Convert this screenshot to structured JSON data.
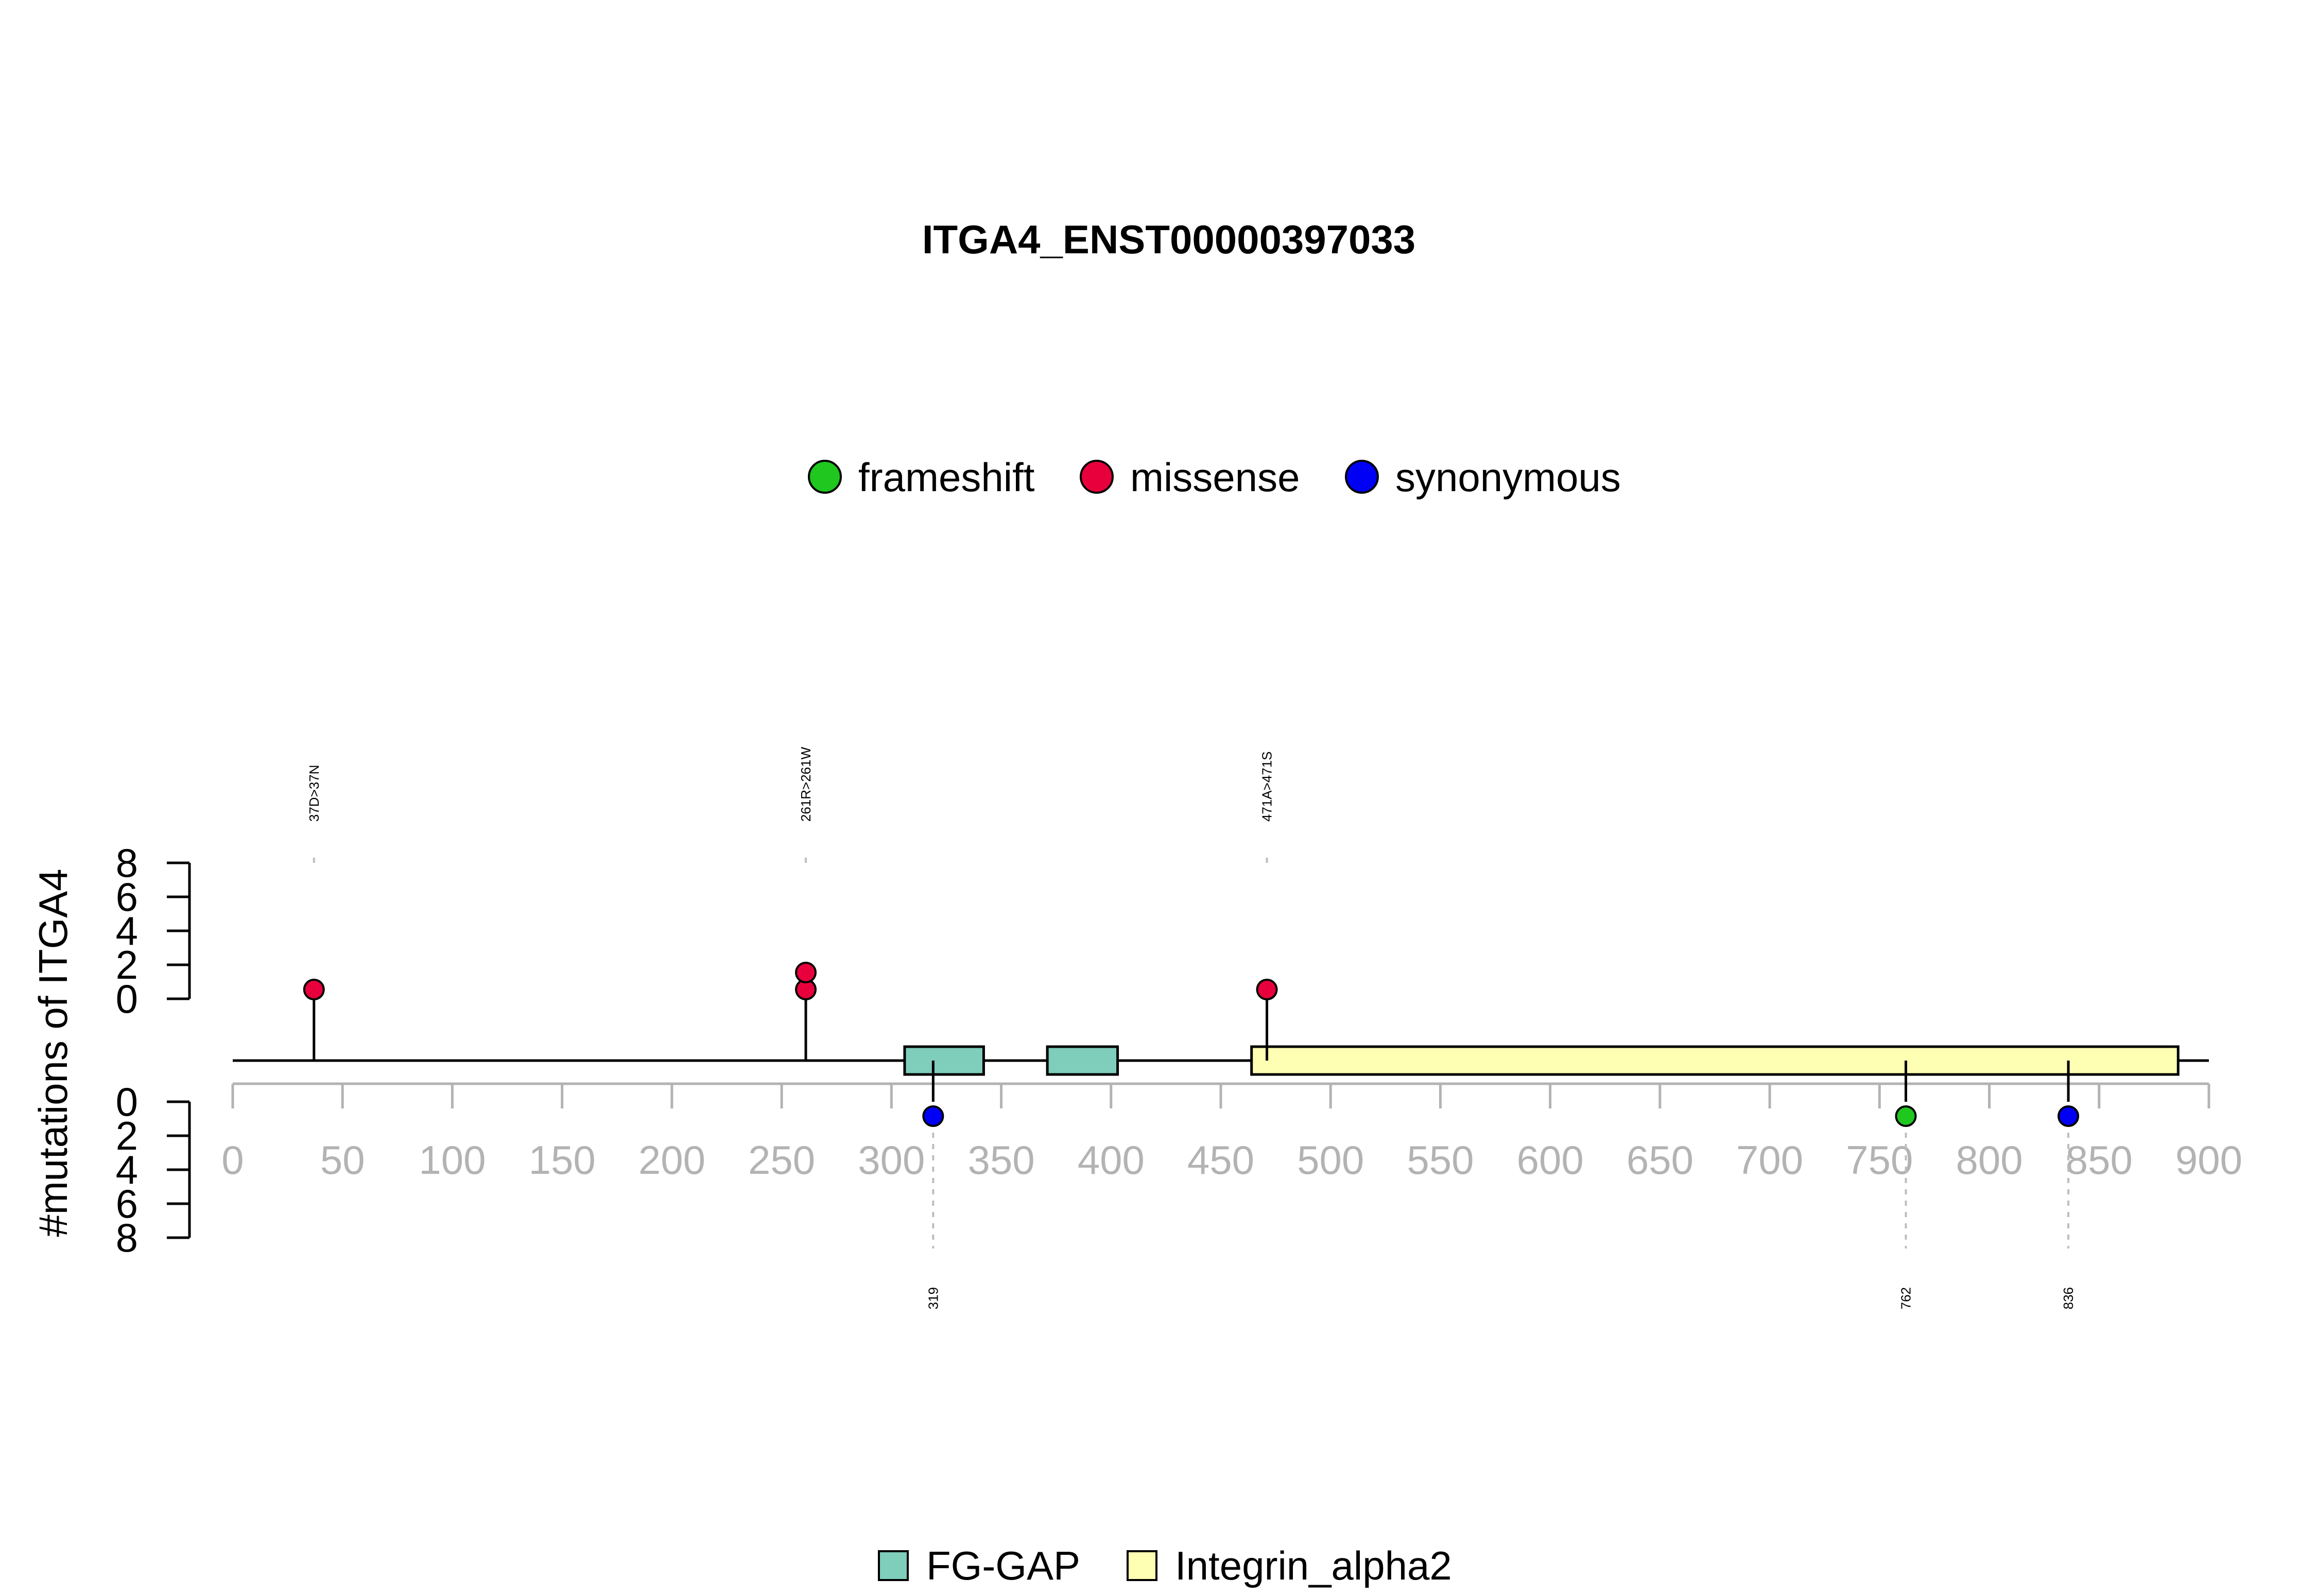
{
  "chart_data": {
    "type": "lollipop",
    "title": "ITGA4_ENST00000397033",
    "ylabel": "#mutations of ITGA4",
    "xlim": [
      0,
      900
    ],
    "x_ticks": [
      0,
      50,
      100,
      150,
      200,
      250,
      300,
      350,
      400,
      450,
      500,
      550,
      600,
      650,
      700,
      750,
      800,
      850,
      900
    ],
    "y_ticks_upper": [
      0,
      2,
      4,
      6,
      8
    ],
    "y_ticks_lower": [
      0,
      2,
      4,
      6,
      8
    ],
    "mutation_legend": [
      {
        "name": "frameshift",
        "color": "#1fc71f"
      },
      {
        "name": "missense",
        "color": "#e8003d"
      },
      {
        "name": "synonymous",
        "color": "#0000f5"
      }
    ],
    "domain_legend": [
      {
        "name": "FG-GAP",
        "color": "#7fcdbb"
      },
      {
        "name": "Integrin_alpha2",
        "color": "#ffffb3"
      }
    ],
    "domains": [
      {
        "name": "FG-GAP",
        "start": 306,
        "end": 342
      },
      {
        "name": "FG-GAP",
        "start": 371,
        "end": 403
      },
      {
        "name": "Integrin_alpha2",
        "start": 464,
        "end": 886
      }
    ],
    "protein_length": 900,
    "mutations_upper": [
      {
        "position": 37,
        "label": "37D>37N",
        "type": "missense",
        "count": 1
      },
      {
        "position": 261,
        "label": "261R>261W",
        "type": "missense",
        "count": 2
      },
      {
        "position": 471,
        "label": "471A>471S",
        "type": "missense",
        "count": 1
      }
    ],
    "mutations_lower": [
      {
        "position": 319,
        "label": "319",
        "type": "synonymous",
        "count": 1
      },
      {
        "position": 762,
        "label": "762",
        "type": "frameshift",
        "count": 1
      },
      {
        "position": 836,
        "label": "836",
        "type": "synonymous",
        "count": 1
      }
    ]
  }
}
